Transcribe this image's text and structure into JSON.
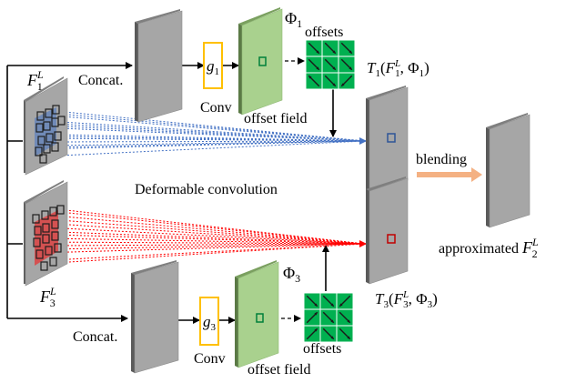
{
  "labels": {
    "concat_top": "Concat.",
    "concat_bottom": "Concat.",
    "conv_top": "Conv",
    "conv_bottom": "Conv",
    "g1": "g",
    "g1_sub": "1",
    "g3": "g",
    "g3_sub": "3",
    "offset_field_top": "offset field",
    "offset_field_bottom": "offset field",
    "offsets_top": "offsets",
    "offsets_bottom": "offsets",
    "phi1": "Φ",
    "phi1_sub": "1",
    "phi3": "Φ",
    "phi3_sub": "3",
    "F1": "F",
    "F1_sup": "L",
    "F1_sub": "1",
    "F3": "F",
    "F3_sup": "L",
    "F3_sub": "3",
    "T1": "T",
    "T1_sub": "1",
    "T1_args_open": "(",
    "T1_args_F": "F",
    "T1_args_sup": "L",
    "T1_args_sub": "1",
    "T1_args_sep": ", Φ",
    "T1_args_phisub": "1",
    "T1_args_close": ")",
    "T3": "T",
    "T3_sub": "3",
    "T3_args_open": "(",
    "T3_args_F": "F",
    "T3_args_sup": "L",
    "T3_args_sub": "3",
    "T3_args_sep": ", Φ",
    "T3_args_phisub": "3",
    "T3_args_close": ")",
    "deformable": "Deformable convolution",
    "blending": "blending",
    "approximated": "approximated ",
    "approx_F": "F",
    "approx_sup": "L",
    "approx_sub": "2"
  },
  "colors": {
    "panel_front": "#a6a6a6",
    "panel_side": "#5a5a5a",
    "panel_top": "#7f7f7f",
    "green_panel": "#a9d18e",
    "green_grid": "#00b050",
    "blue_overlay": "#4472c4",
    "red_overlay": "#e03c3c",
    "conv_box": "#ffc000",
    "blend_arrow": "#f4b183",
    "blue_lines": "#4472c4",
    "red_lines": "#ff0000"
  }
}
